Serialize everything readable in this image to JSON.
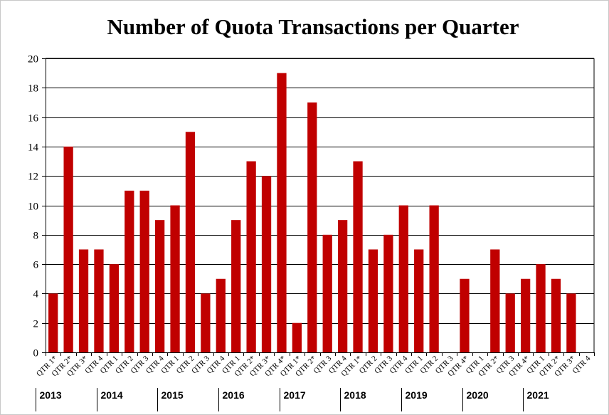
{
  "chart_data": {
    "type": "bar",
    "title": "Number of Quota Transactions per Quarter",
    "xlabel": "",
    "ylabel": "",
    "ylim": [
      0,
      20
    ],
    "yticks": [
      0,
      2,
      4,
      6,
      8,
      10,
      12,
      14,
      16,
      18,
      20
    ],
    "grid": true,
    "legend": "none",
    "bar_color": "#c00000",
    "categories": [
      "QTR 1*",
      "QTR 2*",
      "QTR 3*",
      "QTR 4",
      "QTR 1",
      "QTR 2",
      "QTR 3",
      "QTR 4",
      "QTR 1",
      "QTR 2",
      "QTR 3",
      "QTR 4",
      "QTR 1",
      "QTR 2*",
      "QTR 3*",
      "QTR 4*",
      "QTR 1*",
      "QTR 2*",
      "QTR 3",
      "QTR 4",
      "QTR 1*",
      "QTR 2",
      "QTR 3",
      "QTR 4",
      "QTR 1",
      "QTR 2",
      "QTR 3",
      "QTR 4*",
      "QTR 1",
      "QTR 2*",
      "QTR 3",
      "QTR 4*",
      "QTR 1",
      "QTR 2*",
      "QTR 3*",
      "QTR 4"
    ],
    "values": [
      4,
      14,
      7,
      7,
      6,
      11,
      11,
      9,
      10,
      15,
      4,
      5,
      9,
      13,
      12,
      19,
      2,
      17,
      8,
      9,
      13,
      7,
      8,
      10,
      7,
      10,
      0,
      5,
      0,
      7,
      4,
      5,
      6,
      5,
      4,
      0
    ],
    "year_groups": [
      {
        "label": "2013",
        "start": 0,
        "count": 4
      },
      {
        "label": "2014",
        "start": 4,
        "count": 4
      },
      {
        "label": "2015",
        "start": 8,
        "count": 4
      },
      {
        "label": "2016",
        "start": 12,
        "count": 4
      },
      {
        "label": "2017",
        "start": 16,
        "count": 4
      },
      {
        "label": "2018",
        "start": 20,
        "count": 4
      },
      {
        "label": "2019",
        "start": 24,
        "count": 4
      },
      {
        "label": "2020",
        "start": 28,
        "count": 4
      },
      {
        "label": "2021",
        "start": 32,
        "count": 4
      }
    ]
  }
}
